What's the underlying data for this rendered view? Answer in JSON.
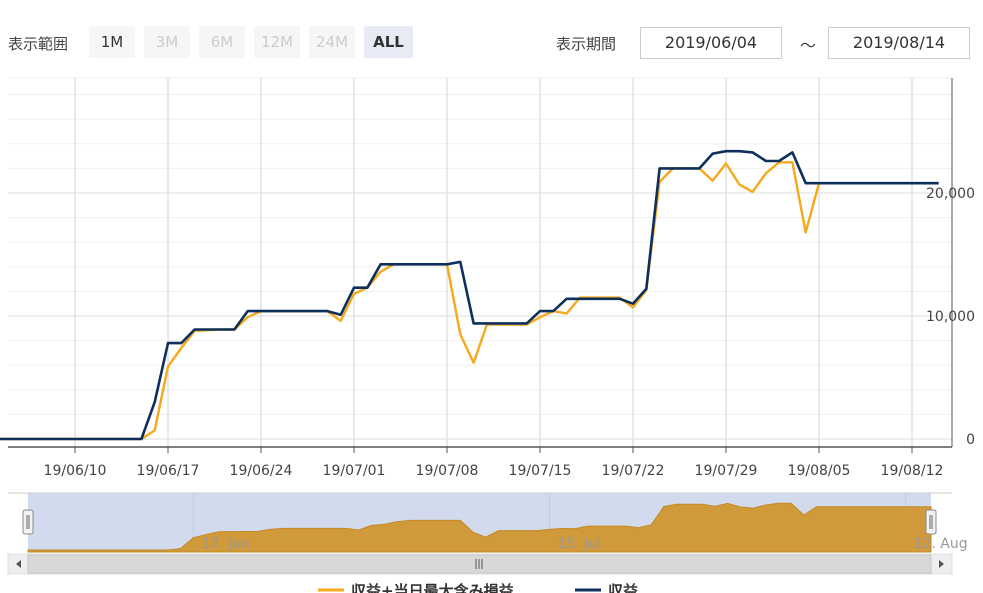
{
  "toolbar": {
    "range_label": "表示範囲",
    "ranges": [
      "1M",
      "3M",
      "6M",
      "12M",
      "24M",
      "ALL"
    ],
    "selected_range": "ALL",
    "period_label": "表示期間",
    "start_date": "2019/06/04",
    "separator": "～",
    "end_date": "2019/08/14"
  },
  "colors": {
    "series1": "#f5a91b",
    "series2": "#0d2f5c",
    "navigator_fill": "#d09a3a",
    "navigator_mask": "#d2daee"
  },
  "chart_data": {
    "type": "line",
    "xlabel": "",
    "ylabel": "",
    "x_range": [
      "2019-06-04",
      "2019-08-14"
    ],
    "ylim": [
      0,
      29000
    ],
    "y_ticks": [
      0,
      10000,
      20000
    ],
    "y_tick_labels": [
      "0",
      "10,000",
      "20,000"
    ],
    "x_ticks": [
      "2019-06-10",
      "2019-06-17",
      "2019-06-24",
      "2019-07-01",
      "2019-07-08",
      "2019-07-15",
      "2019-07-22",
      "2019-07-29",
      "2019-08-05",
      "2019-08-12"
    ],
    "x_tick_labels": [
      "19/06/10",
      "19/06/17",
      "19/06/24",
      "19/07/01",
      "19/07/08",
      "19/07/15",
      "19/07/22",
      "19/07/29",
      "19/08/05",
      "19/08/12"
    ],
    "series": [
      {
        "name": "収益+当日最大含み損益",
        "color": "#f5a91b",
        "points": [
          [
            "2019-06-04",
            0
          ],
          [
            "2019-06-15",
            0
          ],
          [
            "2019-06-16",
            700
          ],
          [
            "2019-06-17",
            5900
          ],
          [
            "2019-06-18",
            7400
          ],
          [
            "2019-06-19",
            8800
          ],
          [
            "2019-06-21",
            8900
          ],
          [
            "2019-06-22",
            8900
          ],
          [
            "2019-06-23",
            9900
          ],
          [
            "2019-06-24",
            10400
          ],
          [
            "2019-06-29",
            10400
          ],
          [
            "2019-06-30",
            9600
          ],
          [
            "2019-07-01",
            11800
          ],
          [
            "2019-07-02",
            12300
          ],
          [
            "2019-07-03",
            13600
          ],
          [
            "2019-07-04",
            14200
          ],
          [
            "2019-07-08",
            14200
          ],
          [
            "2019-07-09",
            8500
          ],
          [
            "2019-07-10",
            6200
          ],
          [
            "2019-07-11",
            9300
          ],
          [
            "2019-07-14",
            9300
          ],
          [
            "2019-07-15",
            9900
          ],
          [
            "2019-07-16",
            10400
          ],
          [
            "2019-07-17",
            10200
          ],
          [
            "2019-07-18",
            11500
          ],
          [
            "2019-07-21",
            11500
          ],
          [
            "2019-07-22",
            10700
          ],
          [
            "2019-07-23",
            12100
          ],
          [
            "2019-07-24",
            20900
          ],
          [
            "2019-07-25",
            22000
          ],
          [
            "2019-07-27",
            22000
          ],
          [
            "2019-07-28",
            21000
          ],
          [
            "2019-07-29",
            22400
          ],
          [
            "2019-07-30",
            20700
          ],
          [
            "2019-07-31",
            20100
          ],
          [
            "2019-08-01",
            21600
          ],
          [
            "2019-08-02",
            22500
          ],
          [
            "2019-08-03",
            22500
          ],
          [
            "2019-08-04",
            16800
          ],
          [
            "2019-08-05",
            20800
          ],
          [
            "2019-08-14",
            20800
          ]
        ]
      },
      {
        "name": "収益",
        "color": "#0d2f5c",
        "points": [
          [
            "2019-06-04",
            0
          ],
          [
            "2019-06-15",
            0
          ],
          [
            "2019-06-16",
            3000
          ],
          [
            "2019-06-17",
            7800
          ],
          [
            "2019-06-18",
            7800
          ],
          [
            "2019-06-19",
            8900
          ],
          [
            "2019-06-21",
            8900
          ],
          [
            "2019-06-22",
            8900
          ],
          [
            "2019-06-23",
            10400
          ],
          [
            "2019-06-28",
            10400
          ],
          [
            "2019-06-29",
            10400
          ],
          [
            "2019-06-30",
            10100
          ],
          [
            "2019-07-01",
            12300
          ],
          [
            "2019-07-02",
            12300
          ],
          [
            "2019-07-03",
            14200
          ],
          [
            "2019-07-08",
            14200
          ],
          [
            "2019-07-09",
            14400
          ],
          [
            "2019-07-10",
            9400
          ],
          [
            "2019-07-14",
            9400
          ],
          [
            "2019-07-15",
            10400
          ],
          [
            "2019-07-16",
            10400
          ],
          [
            "2019-07-17",
            11400
          ],
          [
            "2019-07-21",
            11400
          ],
          [
            "2019-07-22",
            11000
          ],
          [
            "2019-07-23",
            12200
          ],
          [
            "2019-07-24",
            22000
          ],
          [
            "2019-07-27",
            22000
          ],
          [
            "2019-07-28",
            23200
          ],
          [
            "2019-07-29",
            23400
          ],
          [
            "2019-07-30",
            23400
          ],
          [
            "2019-07-31",
            23300
          ],
          [
            "2019-08-01",
            22600
          ],
          [
            "2019-08-02",
            22600
          ],
          [
            "2019-08-03",
            23300
          ],
          [
            "2019-08-04",
            20800
          ],
          [
            "2019-08-14",
            20800
          ]
        ]
      }
    ],
    "navigator_labels": [
      "17. Jun",
      "15. Jul",
      "12. Aug"
    ],
    "legend_position": "bottom",
    "grid": true
  }
}
